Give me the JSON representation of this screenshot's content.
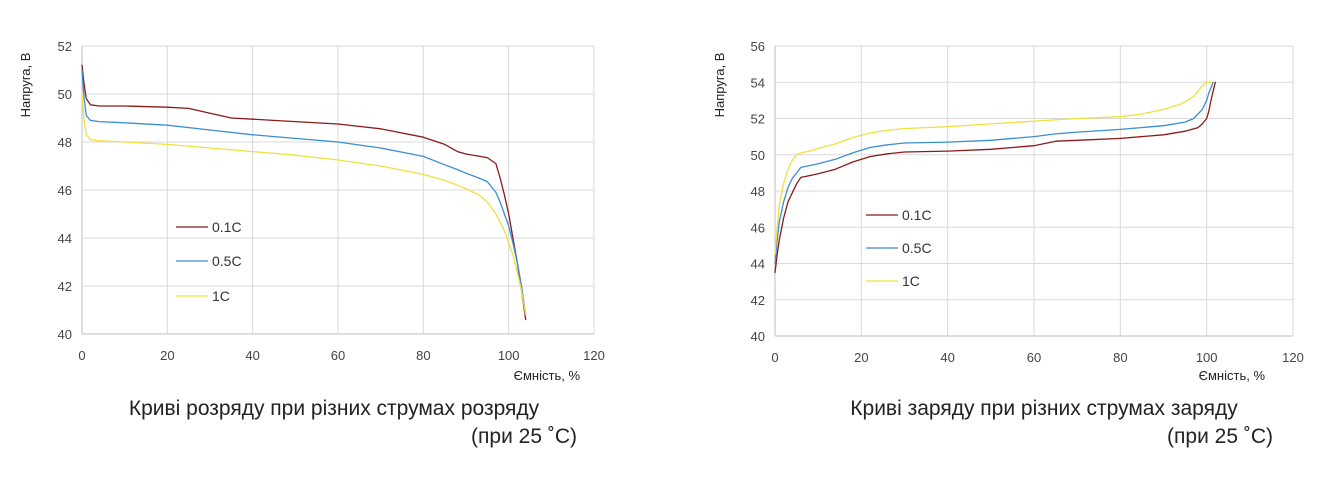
{
  "chart_data": [
    {
      "type": "line",
      "xlabel": "Ємність, %",
      "ylabel": "Напруга, В",
      "xlim": [
        0,
        120
      ],
      "ylim": [
        40,
        52
      ],
      "xticks": [
        0,
        20,
        40,
        60,
        80,
        100,
        120
      ],
      "yticks": [
        40,
        42,
        44,
        46,
        48,
        50,
        52
      ],
      "grid": true,
      "legend_position": "left-middle",
      "caption_lines": [
        "Криві розряду при різних струмах розряду",
        "(при 25 ˚С)"
      ],
      "series": [
        {
          "name": "0.1С",
          "color": "#8b1a1a",
          "x": [
            0,
            0.5,
            1,
            2,
            4,
            10,
            20,
            25,
            30,
            35,
            40,
            50,
            60,
            70,
            80,
            85,
            88,
            90,
            95,
            97,
            98,
            99,
            100,
            101,
            102,
            103,
            104
          ],
          "y": [
            51.2,
            50.4,
            49.8,
            49.55,
            49.5,
            49.5,
            49.45,
            49.4,
            49.2,
            49.0,
            48.95,
            48.85,
            48.75,
            48.55,
            48.2,
            47.9,
            47.6,
            47.5,
            47.35,
            47.1,
            46.5,
            45.8,
            45.0,
            44.0,
            43.0,
            41.8,
            40.6
          ]
        },
        {
          "name": "0.5С",
          "color": "#3a8fd0",
          "x": [
            0,
            0.5,
            1,
            2,
            4,
            10,
            20,
            30,
            40,
            50,
            60,
            70,
            80,
            85,
            88,
            90,
            93,
            95,
            97,
            98,
            99,
            100,
            101,
            102,
            103,
            104
          ],
          "y": [
            51.0,
            49.8,
            49.1,
            48.9,
            48.85,
            48.8,
            48.7,
            48.5,
            48.3,
            48.15,
            48.0,
            47.75,
            47.4,
            47.05,
            46.85,
            46.7,
            46.5,
            46.35,
            45.9,
            45.5,
            45.0,
            44.5,
            43.8,
            43.0,
            42.0,
            40.8
          ]
        },
        {
          "name": "1С",
          "color": "#f0e040",
          "x": [
            0,
            0.5,
            1,
            2,
            4,
            10,
            20,
            30,
            40,
            50,
            60,
            70,
            80,
            85,
            88,
            90,
            93,
            95,
            97,
            99,
            101,
            102,
            103,
            104
          ],
          "y": [
            50.0,
            48.9,
            48.3,
            48.1,
            48.05,
            48.0,
            47.9,
            47.75,
            47.6,
            47.45,
            47.25,
            47.0,
            46.65,
            46.4,
            46.2,
            46.05,
            45.8,
            45.5,
            45.0,
            44.3,
            43.3,
            42.6,
            41.8,
            40.8
          ]
        }
      ]
    },
    {
      "type": "line",
      "xlabel": "Ємність, %",
      "ylabel": "Напруга, В",
      "xlim": [
        0,
        120
      ],
      "ylim": [
        40,
        56
      ],
      "xticks": [
        0,
        20,
        40,
        60,
        80,
        100,
        120
      ],
      "yticks": [
        40,
        42,
        44,
        46,
        48,
        50,
        52,
        54,
        56
      ],
      "grid": true,
      "legend_position": "left-middle",
      "caption_lines": [
        "Криві заряду при різних струмах заряду",
        "(при 25 ˚С)"
      ],
      "series": [
        {
          "name": "0.1С",
          "color": "#8b1a1a",
          "x": [
            0,
            0.5,
            1,
            2,
            3,
            4,
            5,
            6,
            8,
            10,
            14,
            18,
            22,
            26,
            30,
            40,
            50,
            60,
            65,
            70,
            80,
            90,
            95,
            98,
            99,
            100,
            100.5,
            101,
            101.5,
            102
          ],
          "y": [
            43.5,
            44.5,
            45.3,
            46.5,
            47.4,
            47.9,
            48.4,
            48.75,
            48.85,
            48.95,
            49.2,
            49.6,
            49.9,
            50.05,
            50.15,
            50.2,
            50.3,
            50.5,
            50.75,
            50.8,
            50.9,
            51.1,
            51.3,
            51.5,
            51.7,
            52.0,
            52.4,
            53.0,
            53.5,
            54.0
          ]
        },
        {
          "name": "0.5С",
          "color": "#3a8fd0",
          "x": [
            0,
            0.5,
            1,
            2,
            3,
            4,
            5,
            6,
            8,
            10,
            14,
            18,
            22,
            26,
            30,
            40,
            50,
            60,
            65,
            70,
            80,
            90,
            95,
            97,
            99,
            100,
            100.5,
            101,
            101.5
          ],
          "y": [
            44.0,
            45.3,
            46.3,
            47.4,
            48.2,
            48.7,
            49.0,
            49.3,
            49.4,
            49.5,
            49.75,
            50.1,
            50.4,
            50.55,
            50.65,
            50.7,
            50.8,
            51.0,
            51.15,
            51.25,
            51.4,
            51.6,
            51.8,
            52.0,
            52.5,
            53.0,
            53.4,
            53.7,
            54.0
          ]
        },
        {
          "name": "1С",
          "color": "#f0e040",
          "x": [
            0,
            0.5,
            1,
            2,
            3,
            4,
            5,
            6,
            8,
            10,
            14,
            18,
            22,
            26,
            30,
            40,
            50,
            60,
            70,
            80,
            85,
            90,
            94,
            97,
            98,
            99,
            100,
            101
          ],
          "y": [
            44.5,
            46.0,
            47.2,
            48.4,
            49.2,
            49.7,
            50.0,
            50.1,
            50.2,
            50.35,
            50.6,
            50.95,
            51.2,
            51.35,
            51.45,
            51.55,
            51.7,
            51.85,
            52.0,
            52.1,
            52.25,
            52.5,
            52.8,
            53.2,
            53.5,
            53.8,
            54.0,
            54.0
          ]
        }
      ]
    }
  ]
}
